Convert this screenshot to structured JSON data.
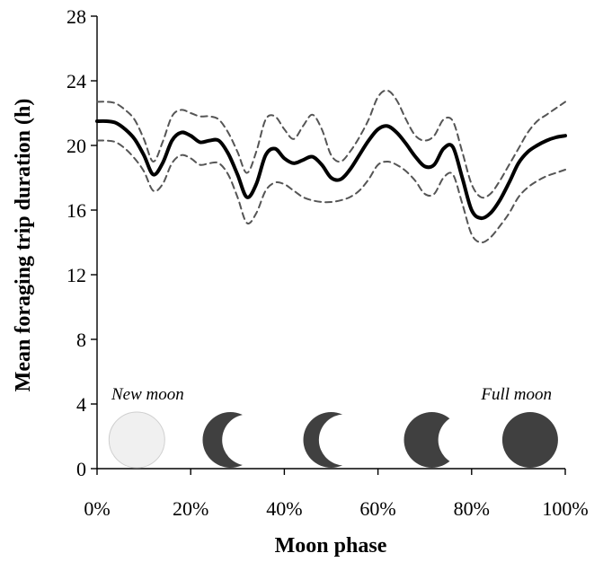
{
  "chart_data": {
    "type": "line",
    "xlabel": "Moon phase",
    "ylabel": "Mean foraging trip duration (h)",
    "xlim": [
      0,
      100
    ],
    "ylim": [
      0,
      28
    ],
    "x_ticks": [
      "0%",
      "20%",
      "40%",
      "60%",
      "80%",
      "100%"
    ],
    "y_ticks": [
      "0",
      "4",
      "8",
      "12",
      "16",
      "20",
      "24",
      "28"
    ],
    "grid": false,
    "annotations": [
      "New moon",
      "Full moon"
    ],
    "x": [
      0,
      2,
      4,
      6,
      8,
      10,
      12,
      14,
      16,
      18,
      20,
      22,
      24,
      26,
      28,
      30,
      32,
      34,
      36,
      38,
      40,
      42,
      44,
      46,
      48,
      50,
      52,
      54,
      56,
      58,
      60,
      62,
      64,
      66,
      68,
      70,
      72,
      74,
      76,
      78,
      80,
      82,
      84,
      86,
      88,
      90,
      92,
      94,
      96,
      98,
      100
    ],
    "series": [
      {
        "style": "solid",
        "values": [
          21.5,
          21.5,
          21.4,
          21.0,
          20.4,
          19.4,
          18.2,
          18.9,
          20.3,
          20.8,
          20.6,
          20.2,
          20.3,
          20.3,
          19.5,
          18.2,
          16.8,
          17.6,
          19.4,
          19.8,
          19.2,
          18.9,
          19.1,
          19.3,
          18.8,
          18.0,
          17.9,
          18.5,
          19.4,
          20.3,
          21.0,
          21.2,
          20.8,
          20.1,
          19.3,
          18.7,
          18.8,
          19.8,
          19.9,
          18.0,
          16.0,
          15.5,
          15.8,
          16.6,
          17.7,
          18.9,
          19.6,
          20.0,
          20.3,
          20.5,
          20.6
        ]
      },
      {
        "style": "dashed",
        "values": [
          22.7,
          22.7,
          22.6,
          22.2,
          21.6,
          20.4,
          19.0,
          20.2,
          21.8,
          22.2,
          22.0,
          21.8,
          21.8,
          21.6,
          20.8,
          19.6,
          18.3,
          19.6,
          21.6,
          21.8,
          21.0,
          20.4,
          21.2,
          21.9,
          21.0,
          19.4,
          19.0,
          19.6,
          20.5,
          21.6,
          23.0,
          23.4,
          22.8,
          21.6,
          20.6,
          20.3,
          20.6,
          21.6,
          21.5,
          19.6,
          17.6,
          16.8,
          17.0,
          17.8,
          18.8,
          19.8,
          20.8,
          21.5,
          21.9,
          22.3,
          22.7
        ]
      },
      {
        "style": "dashed",
        "values": [
          20.3,
          20.3,
          20.2,
          19.8,
          19.2,
          18.4,
          17.2,
          17.6,
          18.9,
          19.4,
          19.2,
          18.8,
          18.9,
          18.9,
          18.2,
          16.8,
          15.2,
          15.8,
          17.2,
          17.7,
          17.6,
          17.2,
          16.8,
          16.6,
          16.5,
          16.5,
          16.6,
          16.8,
          17.2,
          17.9,
          18.8,
          19.0,
          18.8,
          18.4,
          17.8,
          17.0,
          17.0,
          18.0,
          18.2,
          16.4,
          14.5,
          14.0,
          14.3,
          15.0,
          15.8,
          16.8,
          17.4,
          17.8,
          18.1,
          18.3,
          18.5
        ]
      }
    ],
    "moons": [
      {
        "x": 8.5,
        "phase": "new",
        "fill": "#f0f0f0",
        "stroke": "#cfcfcf"
      },
      {
        "x": 28.5,
        "phase": "thin-crescent",
        "fill": "#404040"
      },
      {
        "x": 50.0,
        "phase": "crescent",
        "fill": "#404040"
      },
      {
        "x": 71.5,
        "phase": "gibbous",
        "fill": "#404040"
      },
      {
        "x": 92.5,
        "phase": "full",
        "fill": "#404040"
      }
    ]
  }
}
